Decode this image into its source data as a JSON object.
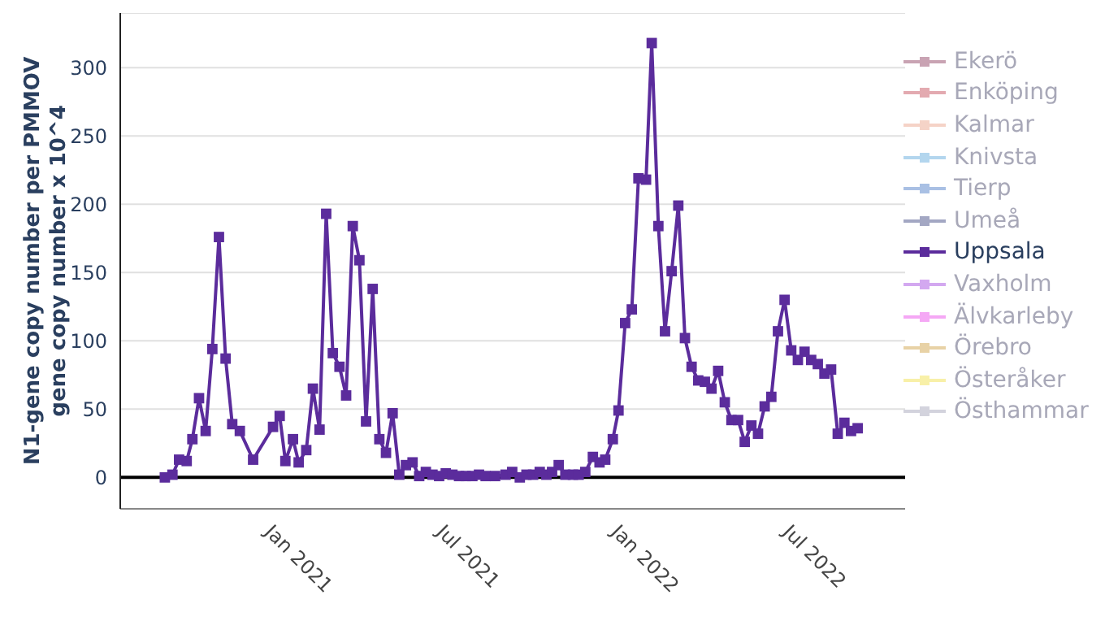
{
  "chart_data": {
    "type": "line",
    "ylabel": "N1-gene copy number per PMMOV\ngene copy number x 10^4",
    "marker": "square",
    "line_style": "solid",
    "grid": "y",
    "legend": "right",
    "xlim": [
      "2020-07-29",
      "2022-11-03"
    ],
    "xticks": [
      {
        "value": "2021-01-01",
        "label": "Jan 2021"
      },
      {
        "value": "2021-07-01",
        "label": "Jul 2021"
      },
      {
        "value": "2022-01-01",
        "label": "Jan 2022"
      },
      {
        "value": "2022-07-01",
        "label": "Jul 2022"
      }
    ],
    "ylim": [
      -23,
      340
    ],
    "yticks": [
      0,
      50,
      100,
      150,
      200,
      250,
      300
    ],
    "ref_lines": [
      {
        "axis": "y",
        "value": 0,
        "color": "#000000"
      }
    ],
    "series": [
      {
        "name": "Ekerö",
        "color": "#c9a3b3"
      },
      {
        "name": "Enköping",
        "color": "#e3aab0"
      },
      {
        "name": "Kalmar",
        "color": "#f5d3c7"
      },
      {
        "name": "Knivsta",
        "color": "#b3d6ee"
      },
      {
        "name": "Tierp",
        "color": "#a9c0e4"
      },
      {
        "name": "Umeå",
        "color": "#a3a7c3"
      },
      {
        "name": "Uppsala",
        "color": "#5b2c9c",
        "x": [
          "2020-09-14",
          "2020-09-22",
          "2020-09-29",
          "2020-10-07",
          "2020-10-13",
          "2020-10-20",
          "2020-10-27",
          "2020-11-03",
          "2020-11-10",
          "2020-11-17",
          "2020-11-24",
          "2020-12-02",
          "2020-12-16",
          "2021-01-06",
          "2021-01-13",
          "2021-01-19",
          "2021-01-27",
          "2021-02-02",
          "2021-02-10",
          "2021-02-17",
          "2021-02-24",
          "2021-03-03",
          "2021-03-10",
          "2021-03-17",
          "2021-03-24",
          "2021-03-31",
          "2021-04-07",
          "2021-04-14",
          "2021-04-21",
          "2021-04-28",
          "2021-05-05",
          "2021-05-12",
          "2021-05-19",
          "2021-05-26",
          "2021-06-02",
          "2021-06-09",
          "2021-06-16",
          "2021-06-23",
          "2021-06-30",
          "2021-07-07",
          "2021-07-14",
          "2021-07-21",
          "2021-07-28",
          "2021-08-04",
          "2021-08-11",
          "2021-08-18",
          "2021-08-28",
          "2021-09-08",
          "2021-09-15",
          "2021-09-23",
          "2021-09-30",
          "2021-10-07",
          "2021-10-14",
          "2021-10-21",
          "2021-10-27",
          "2021-11-03",
          "2021-11-10",
          "2021-11-18",
          "2021-11-24",
          "2021-12-01",
          "2021-12-09",
          "2021-12-16",
          "2021-12-22",
          "2021-12-30",
          "2022-01-05",
          "2022-01-12",
          "2022-01-19",
          "2022-01-26",
          "2022-02-03",
          "2022-02-09",
          "2022-02-16",
          "2022-02-23",
          "2022-03-02",
          "2022-03-09",
          "2022-03-16",
          "2022-03-23",
          "2022-03-30",
          "2022-04-06",
          "2022-04-13",
          "2022-04-20",
          "2022-04-27",
          "2022-05-04",
          "2022-05-11",
          "2022-05-18",
          "2022-05-25",
          "2022-06-01",
          "2022-06-08",
          "2022-06-15",
          "2022-06-22",
          "2022-06-29",
          "2022-07-06",
          "2022-07-13",
          "2022-07-20",
          "2022-07-27",
          "2022-08-03",
          "2022-08-10",
          "2022-08-17",
          "2022-08-24",
          "2022-08-31",
          "2022-09-07",
          "2022-09-14"
        ],
        "values": [
          0,
          2,
          13,
          12,
          28,
          58,
          34,
          94,
          176,
          87,
          39,
          34,
          13,
          37,
          45,
          12,
          28,
          11,
          20,
          65,
          35,
          193,
          91,
          81,
          60,
          184,
          159,
          41,
          138,
          28,
          18,
          47,
          2,
          9,
          11,
          1,
          4,
          2,
          1,
          3,
          2,
          1,
          1,
          1,
          2,
          1,
          1,
          2,
          4,
          0,
          2,
          2,
          4,
          2,
          4,
          9,
          2,
          2,
          2,
          4,
          15,
          11,
          13,
          28,
          49,
          113,
          123,
          219,
          218,
          318,
          184,
          107,
          151,
          199,
          102,
          81,
          71,
          70,
          65,
          78,
          55,
          42,
          42,
          26,
          38,
          32,
          52,
          59,
          107,
          130,
          93,
          86,
          92,
          86,
          83,
          76,
          79,
          32,
          40,
          34,
          36
        ]
      },
      {
        "name": "Vaxholm",
        "color": "#d3a8f0"
      },
      {
        "name": "Älvkarleby",
        "color": "#f5a8f5"
      },
      {
        "name": "Örebro",
        "color": "#e8d2a6"
      },
      {
        "name": "Österåker",
        "color": "#f8f0a8"
      },
      {
        "name": "Östhammar",
        "color": "#d3d3dd"
      }
    ]
  }
}
